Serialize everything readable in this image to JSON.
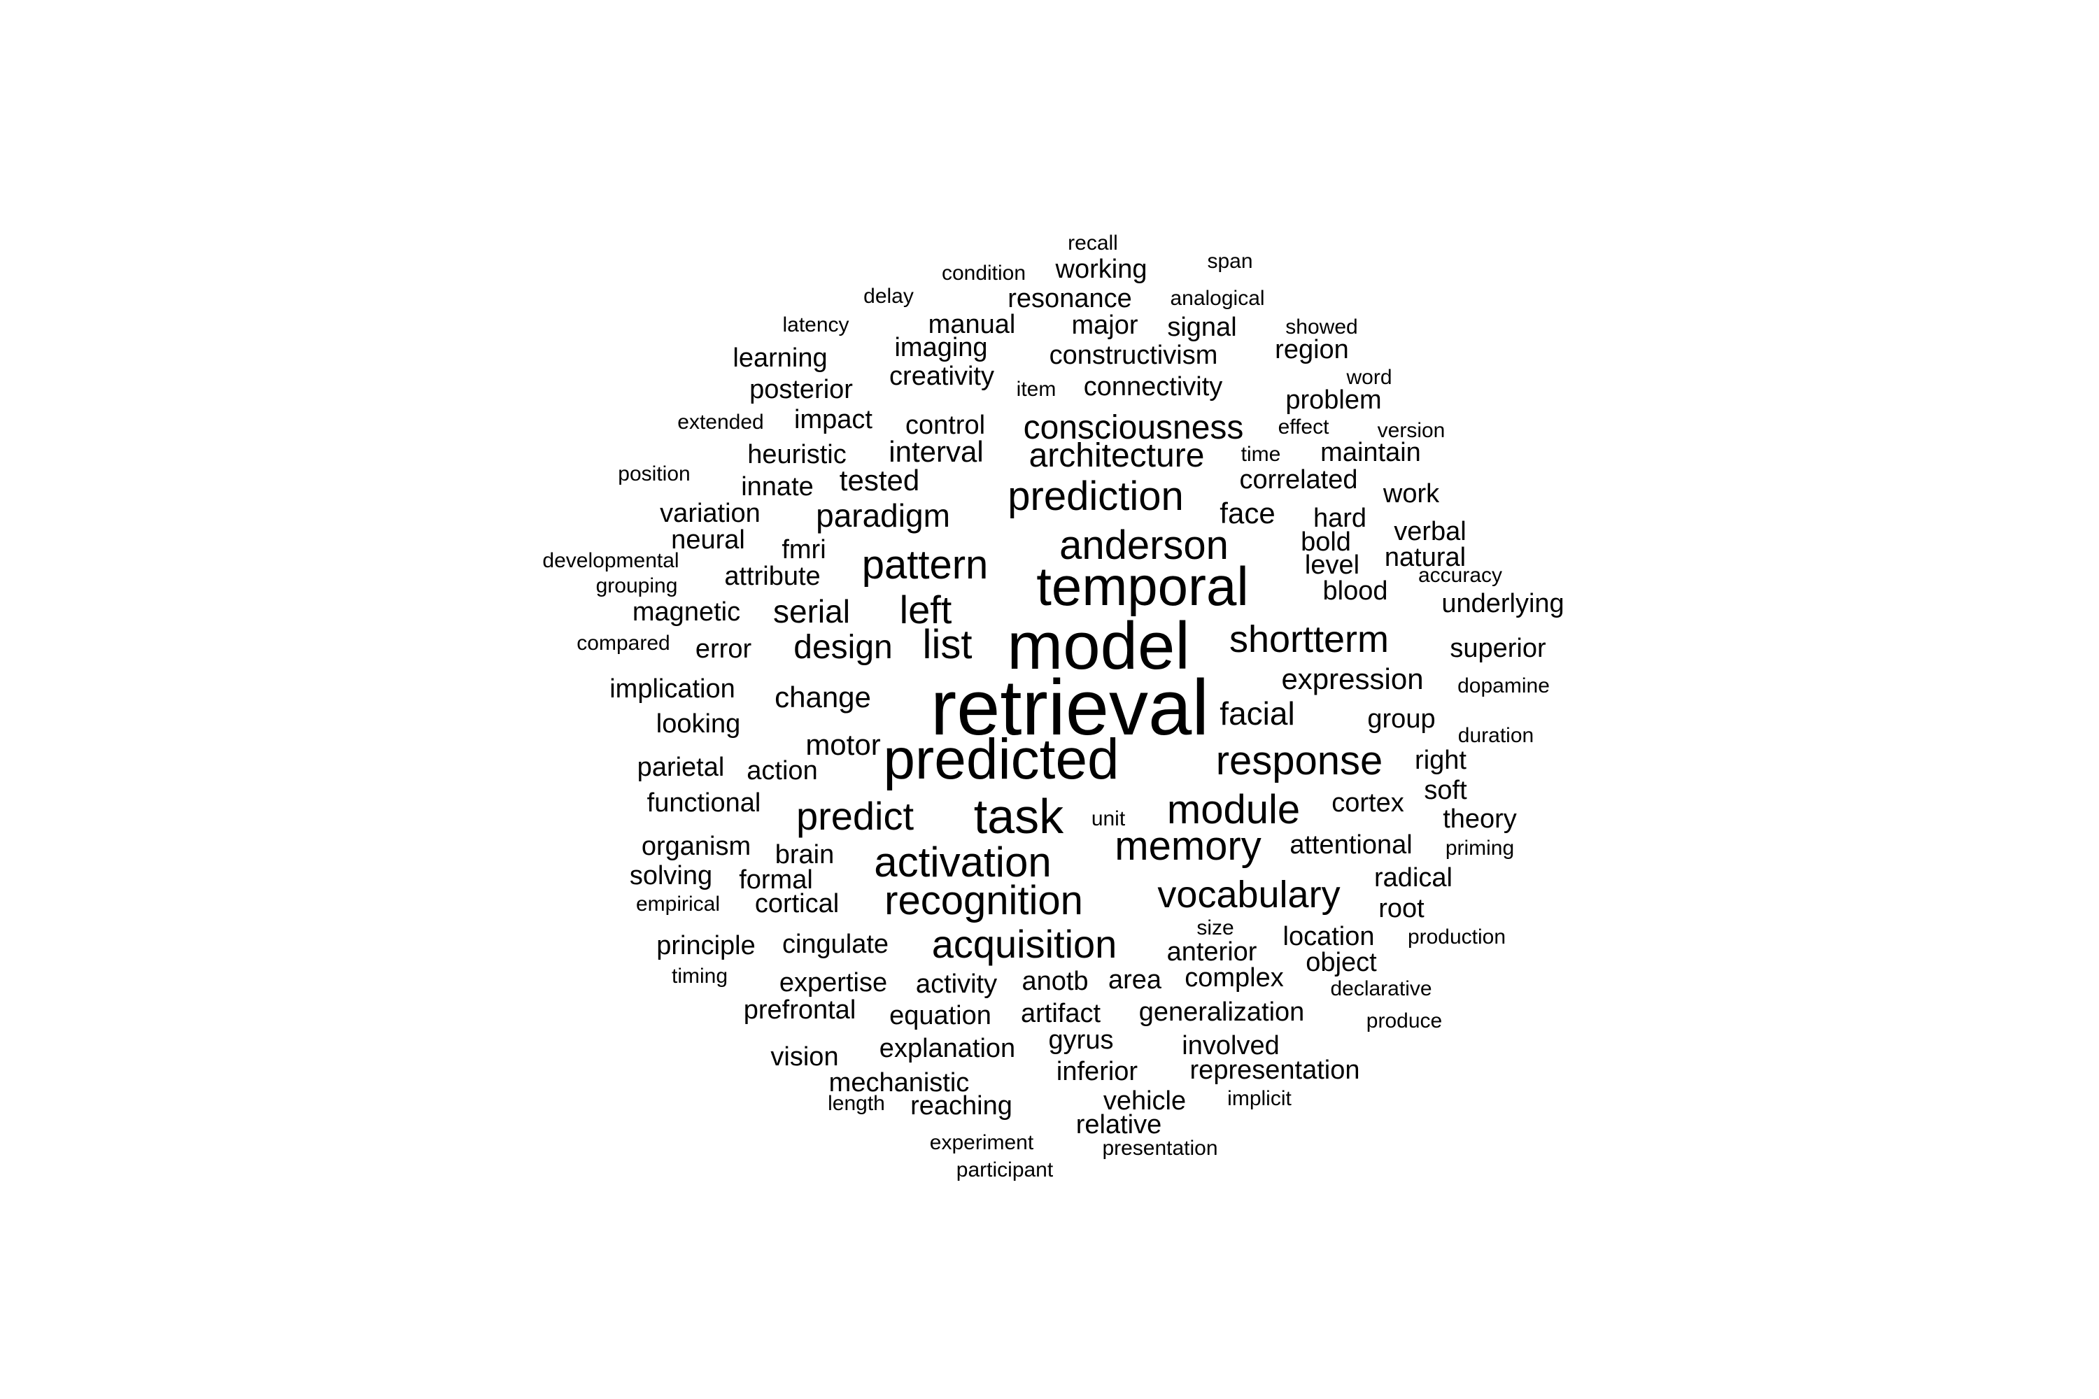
{
  "word_cloud": {
    "text_color": "#000000",
    "background_color": "#ffffff",
    "words": [
      {
        "text": "retrieval",
        "rank": 1
      },
      {
        "text": "model",
        "rank": 2
      },
      {
        "text": "predicted",
        "rank": 3
      },
      {
        "text": "temporal",
        "rank": 4
      },
      {
        "text": "task",
        "rank": 5
      },
      {
        "text": "activation",
        "rank": 6
      },
      {
        "text": "recognition",
        "rank": 7
      },
      {
        "text": "response",
        "rank": 8
      },
      {
        "text": "module",
        "rank": 9
      },
      {
        "text": "memory",
        "rank": 10
      },
      {
        "text": "anderson",
        "rank": 11
      },
      {
        "text": "prediction",
        "rank": 12
      },
      {
        "text": "pattern",
        "rank": 13
      },
      {
        "text": "acquisition",
        "rank": 14
      },
      {
        "text": "shortterm",
        "rank": 15
      },
      {
        "text": "vocabulary",
        "rank": 16
      },
      {
        "text": "predict",
        "rank": 17
      },
      {
        "text": "list",
        "rank": 18
      },
      {
        "text": "left",
        "rank": 19
      },
      {
        "text": "consciousness",
        "rank": 20
      },
      {
        "text": "architecture",
        "rank": 21
      },
      {
        "text": "facial",
        "rank": 22
      },
      {
        "text": "design",
        "rank": 23
      },
      {
        "text": "serial",
        "rank": 24
      },
      {
        "text": "paradigm",
        "rank": 25
      },
      {
        "text": "expression",
        "rank": 26
      },
      {
        "text": "change",
        "rank": 27
      },
      {
        "text": "motor",
        "rank": 28
      },
      {
        "text": "interval",
        "rank": 29
      },
      {
        "text": "tested",
        "rank": 30
      },
      {
        "text": "face",
        "rank": 31
      },
      {
        "text": "recall",
        "rank": 100
      },
      {
        "text": "span",
        "rank": 100
      },
      {
        "text": "condition",
        "rank": 80
      },
      {
        "text": "working",
        "rank": 50
      },
      {
        "text": "delay",
        "rank": 100
      },
      {
        "text": "resonance",
        "rank": 50
      },
      {
        "text": "analogical",
        "rank": 100
      },
      {
        "text": "latency",
        "rank": 100
      },
      {
        "text": "manual",
        "rank": 50
      },
      {
        "text": "major",
        "rank": 50
      },
      {
        "text": "signal",
        "rank": 50
      },
      {
        "text": "showed",
        "rank": 100
      },
      {
        "text": "learning",
        "rank": 50
      },
      {
        "text": "imaging",
        "rank": 50
      },
      {
        "text": "constructivism",
        "rank": 50
      },
      {
        "text": "region",
        "rank": 50
      },
      {
        "text": "creativity",
        "rank": 50
      },
      {
        "text": "word",
        "rank": 100
      },
      {
        "text": "posterior",
        "rank": 50
      },
      {
        "text": "item",
        "rank": 100
      },
      {
        "text": "connectivity",
        "rank": 50
      },
      {
        "text": "problem",
        "rank": 50
      },
      {
        "text": "extended",
        "rank": 100
      },
      {
        "text": "impact",
        "rank": 50
      },
      {
        "text": "control",
        "rank": 50
      },
      {
        "text": "effect",
        "rank": 100
      },
      {
        "text": "version",
        "rank": 100
      },
      {
        "text": "heuristic",
        "rank": 50
      },
      {
        "text": "time",
        "rank": 100
      },
      {
        "text": "maintain",
        "rank": 50
      },
      {
        "text": "position",
        "rank": 100
      },
      {
        "text": "innate",
        "rank": 50
      },
      {
        "text": "correlated",
        "rank": 50
      },
      {
        "text": "work",
        "rank": 50
      },
      {
        "text": "variation",
        "rank": 50
      },
      {
        "text": "hard",
        "rank": 50
      },
      {
        "text": "neural",
        "rank": 50
      },
      {
        "text": "verbal",
        "rank": 50
      },
      {
        "text": "bold",
        "rank": 50
      },
      {
        "text": "developmental",
        "rank": 100
      },
      {
        "text": "fmri",
        "rank": 50
      },
      {
        "text": "natural",
        "rank": 50
      },
      {
        "text": "level",
        "rank": 50
      },
      {
        "text": "accuracy",
        "rank": 100
      },
      {
        "text": "grouping",
        "rank": 100
      },
      {
        "text": "attribute",
        "rank": 50
      },
      {
        "text": "blood",
        "rank": 50
      },
      {
        "text": "underlying",
        "rank": 50
      },
      {
        "text": "magnetic",
        "rank": 50
      },
      {
        "text": "compared",
        "rank": 100
      },
      {
        "text": "error",
        "rank": 50
      },
      {
        "text": "superior",
        "rank": 50
      },
      {
        "text": "implication",
        "rank": 50
      },
      {
        "text": "dopamine",
        "rank": 100
      },
      {
        "text": "looking",
        "rank": 50
      },
      {
        "text": "group",
        "rank": 50
      },
      {
        "text": "duration",
        "rank": 100
      },
      {
        "text": "parietal",
        "rank": 50
      },
      {
        "text": "action",
        "rank": 50
      },
      {
        "text": "right",
        "rank": 50
      },
      {
        "text": "soft",
        "rank": 50
      },
      {
        "text": "functional",
        "rank": 50
      },
      {
        "text": "cortex",
        "rank": 50
      },
      {
        "text": "unit",
        "rank": 100
      },
      {
        "text": "theory",
        "rank": 50
      },
      {
        "text": "organism",
        "rank": 50
      },
      {
        "text": "brain",
        "rank": 50
      },
      {
        "text": "attentional",
        "rank": 50
      },
      {
        "text": "priming",
        "rank": 100
      },
      {
        "text": "solving",
        "rank": 50
      },
      {
        "text": "formal",
        "rank": 50
      },
      {
        "text": "radical",
        "rank": 50
      },
      {
        "text": "empirical",
        "rank": 100
      },
      {
        "text": "cortical",
        "rank": 50
      },
      {
        "text": "root",
        "rank": 50
      },
      {
        "text": "size",
        "rank": 100
      },
      {
        "text": "principle",
        "rank": 50
      },
      {
        "text": "cingulate",
        "rank": 50
      },
      {
        "text": "location",
        "rank": 50
      },
      {
        "text": "production",
        "rank": 100
      },
      {
        "text": "anterior",
        "rank": 50
      },
      {
        "text": "object",
        "rank": 50
      },
      {
        "text": "timing",
        "rank": 100
      },
      {
        "text": "expertise",
        "rank": 50
      },
      {
        "text": "activity",
        "rank": 50
      },
      {
        "text": "anotb",
        "rank": 50
      },
      {
        "text": "area",
        "rank": 50
      },
      {
        "text": "complex",
        "rank": 50
      },
      {
        "text": "declarative",
        "rank": 100
      },
      {
        "text": "prefrontal",
        "rank": 50
      },
      {
        "text": "equation",
        "rank": 50
      },
      {
        "text": "artifact",
        "rank": 50
      },
      {
        "text": "generalization",
        "rank": 50
      },
      {
        "text": "produce",
        "rank": 100
      },
      {
        "text": "gyrus",
        "rank": 50
      },
      {
        "text": "involved",
        "rank": 50
      },
      {
        "text": "vision",
        "rank": 50
      },
      {
        "text": "explanation",
        "rank": 50
      },
      {
        "text": "inferior",
        "rank": 50
      },
      {
        "text": "representation",
        "rank": 50
      },
      {
        "text": "mechanistic",
        "rank": 50
      },
      {
        "text": "implicit",
        "rank": 100
      },
      {
        "text": "length",
        "rank": 100
      },
      {
        "text": "reaching",
        "rank": 50
      },
      {
        "text": "vehicle",
        "rank": 50
      },
      {
        "text": "relative",
        "rank": 50
      },
      {
        "text": "experiment",
        "rank": 100
      },
      {
        "text": "presentation",
        "rank": 100
      },
      {
        "text": "participant",
        "rank": 100
      }
    ]
  }
}
